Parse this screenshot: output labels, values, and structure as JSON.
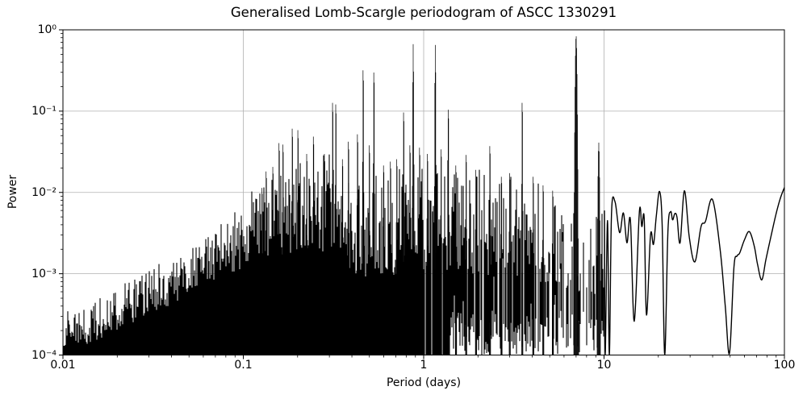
{
  "chart_data": {
    "type": "line",
    "title": "Generalised Lomb-Scargle periodogram of ASCC 1330291",
    "xlabel": "Period (days)",
    "ylabel": "Power",
    "x_scale": "log",
    "y_scale": "log",
    "xlim": [
      0.01,
      100
    ],
    "ylim": [
      0.0001,
      1
    ],
    "grid": true,
    "grid_color": "#b0b0b0",
    "line_color": "#000000",
    "background_color": "#ffffff",
    "x_tick_values": [
      0.01,
      0.1,
      1,
      10,
      100
    ],
    "x_tick_labels": [
      "0.01",
      "0.1",
      "1",
      "10",
      "100"
    ],
    "y_tick_values": [
      1,
      0.1,
      0.01,
      0.001,
      0.0001
    ],
    "y_tick_labels": [
      "10⁰",
      "10⁻¹",
      "10⁻²",
      "10⁻³",
      "10⁻⁴"
    ],
    "noise_floor": 0.0001,
    "solid_fill_max_period": 1.4,
    "spiky_max_period": 9.95,
    "seed": 1330291,
    "main_peaks": [
      [
        0.127,
        0.013,
        0.006
      ],
      [
        0.134,
        0.021,
        0.006
      ],
      [
        0.146,
        0.024,
        0.006
      ],
      [
        0.158,
        0.048,
        0.006
      ],
      [
        0.166,
        0.046,
        0.006
      ],
      [
        0.187,
        0.073,
        0.006
      ],
      [
        0.201,
        0.07,
        0.006
      ],
      [
        0.225,
        0.035,
        0.006
      ],
      [
        0.245,
        0.058,
        0.006
      ],
      [
        0.282,
        0.035,
        0.006
      ],
      [
        0.313,
        0.155,
        0.007
      ],
      [
        0.326,
        0.148,
        0.007
      ],
      [
        0.355,
        0.03,
        0.006
      ],
      [
        0.383,
        0.05,
        0.006
      ],
      [
        0.43,
        0.062,
        0.006
      ],
      [
        0.462,
        0.4,
        0.012
      ],
      [
        0.5,
        0.045,
        0.006
      ],
      [
        0.53,
        0.375,
        0.012
      ],
      [
        0.6,
        0.025,
        0.006
      ],
      [
        0.655,
        0.028,
        0.006
      ],
      [
        0.71,
        0.03,
        0.006
      ],
      [
        0.775,
        0.117,
        0.01
      ],
      [
        0.84,
        0.045,
        0.007
      ],
      [
        0.875,
        0.67,
        0.016
      ],
      [
        0.95,
        0.042,
        0.007
      ],
      [
        1.05,
        0.035,
        0.007
      ],
      [
        1.16,
        0.655,
        0.016
      ],
      [
        1.25,
        0.04,
        0.008
      ],
      [
        1.37,
        0.127,
        0.01
      ],
      [
        1.51,
        0.025,
        0.008
      ],
      [
        1.72,
        0.034,
        0.009
      ],
      [
        1.95,
        0.022,
        0.008
      ],
      [
        2.33,
        0.044,
        0.01
      ],
      [
        2.7,
        0.018,
        0.008
      ],
      [
        3.0,
        0.02,
        0.008
      ],
      [
        3.52,
        0.155,
        0.012
      ],
      [
        4.05,
        0.018,
        0.009
      ],
      [
        4.6,
        0.014,
        0.008
      ],
      [
        5.2,
        0.012,
        0.008
      ],
      [
        7.0,
        0.85,
        0.035
      ],
      [
        9.35,
        0.041,
        0.026
      ]
    ],
    "noise_envelope": [
      [
        0.01,
        0.00035
      ],
      [
        0.014,
        0.00045
      ],
      [
        0.02,
        0.0007
      ],
      [
        0.03,
        0.0012
      ],
      [
        0.045,
        0.0019
      ],
      [
        0.06,
        0.003
      ],
      [
        0.08,
        0.0055
      ],
      [
        0.1,
        0.009
      ],
      [
        0.13,
        0.015
      ],
      [
        0.17,
        0.022
      ],
      [
        0.22,
        0.03
      ],
      [
        0.3,
        0.03
      ],
      [
        0.4,
        0.026
      ],
      [
        0.55,
        0.022
      ],
      [
        0.7,
        0.024
      ],
      [
        0.9,
        0.028
      ],
      [
        1.2,
        0.03
      ],
      [
        1.6,
        0.024
      ],
      [
        2.5,
        0.02
      ],
      [
        4.0,
        0.015
      ],
      [
        6.0,
        0.011
      ],
      [
        8.0,
        0.0085
      ],
      [
        10.3,
        0.007
      ]
    ],
    "noise_density": [
      [
        0.01,
        1
      ],
      [
        0.4,
        1
      ],
      [
        0.45,
        0.985
      ],
      [
        0.8,
        0.95
      ],
      [
        1.2,
        0.92
      ],
      [
        2,
        0.86
      ],
      [
        3,
        0.8
      ],
      [
        5,
        0.7
      ],
      [
        7,
        0.58
      ],
      [
        9,
        0.52
      ],
      [
        9.95,
        0.48
      ]
    ],
    "noise_spread": [
      [
        0.01,
        0.5
      ],
      [
        0.05,
        0.62
      ],
      [
        0.1,
        0.9
      ],
      [
        0.2,
        1.2
      ],
      [
        0.4,
        1.4
      ],
      [
        1,
        1.45
      ],
      [
        3,
        1.3
      ],
      [
        9.95,
        1.15
      ]
    ],
    "smooth_tail": [
      [
        10.05,
        0.006
      ],
      [
        10.15,
        0.0001
      ],
      [
        10.45,
        0.0045
      ],
      [
        10.7,
        0.0001
      ],
      [
        11.0,
        0.0055
      ],
      [
        11.5,
        0.0077
      ],
      [
        12.2,
        0.0032
      ],
      [
        12.8,
        0.0056
      ],
      [
        13.4,
        0.0024
      ],
      [
        14.0,
        0.0046
      ],
      [
        14.7,
        0.00026
      ],
      [
        15.7,
        0.0058
      ],
      [
        16.2,
        0.0038
      ],
      [
        16.7,
        0.0048
      ],
      [
        17.2,
        0.00031
      ],
      [
        18.1,
        0.003
      ],
      [
        18.8,
        0.0023
      ],
      [
        19.5,
        0.0052
      ],
      [
        20.3,
        0.0103
      ],
      [
        21.0,
        0.004
      ],
      [
        21.7,
        0.0001
      ],
      [
        22.6,
        0.0033
      ],
      [
        23.4,
        0.0058
      ],
      [
        24.0,
        0.0046
      ],
      [
        24.7,
        0.0055
      ],
      [
        25.4,
        0.0049
      ],
      [
        26.4,
        0.0024
      ],
      [
        27.9,
        0.0105
      ],
      [
        29.7,
        0.0028
      ],
      [
        31.9,
        0.0014
      ],
      [
        34.5,
        0.0038
      ],
      [
        36.5,
        0.0044
      ],
      [
        39.9,
        0.0082
      ],
      [
        44.0,
        0.002
      ],
      [
        47.0,
        0.0004
      ],
      [
        49.6,
        0.000105
      ],
      [
        52.5,
        0.0012
      ],
      [
        54.6,
        0.00165
      ],
      [
        56.5,
        0.0018
      ],
      [
        60.0,
        0.0026
      ],
      [
        63.9,
        0.0033
      ],
      [
        68.0,
        0.0022
      ],
      [
        71.0,
        0.0013
      ],
      [
        74.9,
        0.00084
      ],
      [
        79.0,
        0.0015
      ],
      [
        84.0,
        0.0028
      ],
      [
        90.0,
        0.0055
      ],
      [
        95.0,
        0.0085
      ],
      [
        100.0,
        0.0115
      ]
    ]
  }
}
